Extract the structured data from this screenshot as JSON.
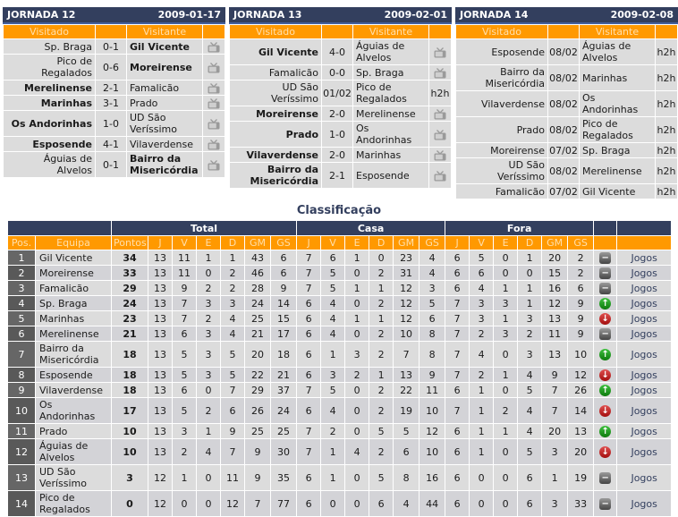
{
  "labels": {
    "h2h": "h2h",
    "jogos": "Jogos"
  },
  "colors": {
    "navy": "#333F5E",
    "orange": "#FF9900",
    "header_text": "#FFDFAC",
    "cell_grey": "#DCDCDC",
    "cell_grey_alt": "#D3D3D7",
    "pos_grey": "#666666",
    "trend_up_green": "#0d7a0d",
    "trend_down_red": "#a30e0e",
    "trend_same_grey": "#454545"
  },
  "jornadas": [
    {
      "title": "JORNADA 12",
      "date": "2009-01-17",
      "columns": {
        "visitado": "Visitado",
        "visitante": "Visitante"
      },
      "matches": [
        {
          "home": "Sp. Braga",
          "home_bold": false,
          "score": "0-1",
          "away": "Gil Vicente",
          "away_bold": true,
          "extra": "tv"
        },
        {
          "home": "Pico de Regalados",
          "home_bold": false,
          "score": "0-6",
          "away": "Moreirense",
          "away_bold": true,
          "extra": "tv"
        },
        {
          "home": "Merelinense",
          "home_bold": true,
          "score": "2-1",
          "away": "Famalicão",
          "away_bold": false,
          "extra": "tv"
        },
        {
          "home": "Marinhas",
          "home_bold": true,
          "score": "3-1",
          "away": "Prado",
          "away_bold": false,
          "extra": "tv"
        },
        {
          "home": "Os Andorinhas",
          "home_bold": true,
          "score": "1-0",
          "away": "UD São Veríssimo",
          "away_bold": false,
          "extra": "tv"
        },
        {
          "home": "Esposende",
          "home_bold": true,
          "score": "4-1",
          "away": "Vilaverdense",
          "away_bold": false,
          "extra": "tv"
        },
        {
          "home": "Águias de Alvelos",
          "home_bold": false,
          "score": "0-1",
          "away": "Bairro da Misericórdia",
          "away_bold": true,
          "extra": "tv"
        }
      ]
    },
    {
      "title": "JORNADA 13",
      "date": "2009-02-01",
      "columns": {
        "visitado": "Visitado",
        "visitante": "Visitante"
      },
      "matches": [
        {
          "home": "Gil Vicente",
          "home_bold": true,
          "score": "4-0",
          "away": "Águias de Alvelos",
          "away_bold": false,
          "extra": "tv"
        },
        {
          "home": "Famalicão",
          "home_bold": false,
          "score": "0-0",
          "away": "Sp. Braga",
          "away_bold": false,
          "extra": "tv"
        },
        {
          "home": "UD São Veríssimo",
          "home_bold": false,
          "score": "01/02",
          "away": "Pico de Regalados",
          "away_bold": false,
          "extra": "h2h"
        },
        {
          "home": "Moreirense",
          "home_bold": true,
          "score": "2-0",
          "away": "Merelinense",
          "away_bold": false,
          "extra": "tv"
        },
        {
          "home": "Prado",
          "home_bold": true,
          "score": "1-0",
          "away": "Os Andorinhas",
          "away_bold": false,
          "extra": "tv"
        },
        {
          "home": "Vilaverdense",
          "home_bold": true,
          "score": "2-0",
          "away": "Marinhas",
          "away_bold": false,
          "extra": "tv"
        },
        {
          "home": "Bairro da Misericórdia",
          "home_bold": true,
          "score": "2-1",
          "away": "Esposende",
          "away_bold": false,
          "extra": "tv"
        }
      ]
    },
    {
      "title": "JORNADA 14",
      "date": "2009-02-08",
      "columns": {
        "visitado": "Visitado",
        "visitante": "Visitante"
      },
      "matches": [
        {
          "home": "Esposende",
          "home_bold": false,
          "score": "08/02",
          "away": "Águias de Alvelos",
          "away_bold": false,
          "extra": "h2h"
        },
        {
          "home": "Bairro da Misericórdia",
          "home_bold": false,
          "score": "08/02",
          "away": "Marinhas",
          "away_bold": false,
          "extra": "h2h"
        },
        {
          "home": "Vilaverdense",
          "home_bold": false,
          "score": "08/02",
          "away": "Os Andorinhas",
          "away_bold": false,
          "extra": "h2h"
        },
        {
          "home": "Prado",
          "home_bold": false,
          "score": "08/02",
          "away": "Pico de Regalados",
          "away_bold": false,
          "extra": "h2h"
        },
        {
          "home": "Moreirense",
          "home_bold": false,
          "score": "07/02",
          "away": "Sp. Braga",
          "away_bold": false,
          "extra": "h2h"
        },
        {
          "home": "UD São Veríssimo",
          "home_bold": false,
          "score": "08/02",
          "away": "Merelinense",
          "away_bold": false,
          "extra": "h2h"
        },
        {
          "home": "Famalicão",
          "home_bold": false,
          "score": "07/02",
          "away": "Gil Vicente",
          "away_bold": false,
          "extra": "h2h"
        }
      ]
    }
  ],
  "classification": {
    "title": "Classificação",
    "groups": {
      "total": "Total",
      "casa": "Casa",
      "fora": "Fora"
    },
    "headers": {
      "pos": "Pos.",
      "team": "Equipa",
      "points": "Pontos",
      "stats": [
        "J",
        "V",
        "E",
        "D",
        "GM",
        "GS"
      ]
    },
    "rows": [
      {
        "pos": "1",
        "team": "Gil Vicente",
        "points": "34",
        "total": [
          13,
          11,
          1,
          1,
          43,
          6
        ],
        "casa": [
          7,
          6,
          1,
          0,
          23,
          4
        ],
        "fora": [
          6,
          5,
          0,
          1,
          20,
          2
        ],
        "trend": "same",
        "jogos": "Jogos"
      },
      {
        "pos": "2",
        "team": "Moreirense",
        "points": "33",
        "total": [
          13,
          11,
          0,
          2,
          46,
          6
        ],
        "casa": [
          7,
          5,
          0,
          2,
          31,
          4
        ],
        "fora": [
          6,
          6,
          0,
          0,
          15,
          2
        ],
        "trend": "same",
        "jogos": "Jogos"
      },
      {
        "pos": "3",
        "team": "Famalicão",
        "points": "29",
        "total": [
          13,
          9,
          2,
          2,
          28,
          9
        ],
        "casa": [
          7,
          5,
          1,
          1,
          12,
          3
        ],
        "fora": [
          6,
          4,
          1,
          1,
          16,
          6
        ],
        "trend": "same",
        "jogos": "Jogos"
      },
      {
        "pos": "4",
        "team": "Sp. Braga",
        "points": "24",
        "total": [
          13,
          7,
          3,
          3,
          24,
          14
        ],
        "casa": [
          6,
          4,
          0,
          2,
          12,
          5
        ],
        "fora": [
          7,
          3,
          3,
          1,
          12,
          9
        ],
        "trend": "up",
        "jogos": "Jogos"
      },
      {
        "pos": "5",
        "team": "Marinhas",
        "points": "23",
        "total": [
          13,
          7,
          2,
          4,
          25,
          15
        ],
        "casa": [
          6,
          4,
          1,
          1,
          12,
          6
        ],
        "fora": [
          7,
          3,
          1,
          3,
          13,
          9
        ],
        "trend": "down",
        "jogos": "Jogos"
      },
      {
        "pos": "6",
        "team": "Merelinense",
        "points": "21",
        "total": [
          13,
          6,
          3,
          4,
          21,
          17
        ],
        "casa": [
          6,
          4,
          0,
          2,
          10,
          8
        ],
        "fora": [
          7,
          2,
          3,
          2,
          11,
          9
        ],
        "trend": "same",
        "jogos": "Jogos"
      },
      {
        "pos": "7",
        "team": "Bairro da Misericórdia",
        "points": "18",
        "total": [
          13,
          5,
          3,
          5,
          20,
          18
        ],
        "casa": [
          6,
          1,
          3,
          2,
          7,
          8
        ],
        "fora": [
          7,
          4,
          0,
          3,
          13,
          10
        ],
        "trend": "up",
        "jogos": "Jogos"
      },
      {
        "pos": "8",
        "team": "Esposende",
        "points": "18",
        "total": [
          13,
          5,
          3,
          5,
          22,
          21
        ],
        "casa": [
          6,
          3,
          2,
          1,
          13,
          9
        ],
        "fora": [
          7,
          2,
          1,
          4,
          9,
          12
        ],
        "trend": "down",
        "jogos": "Jogos"
      },
      {
        "pos": "9",
        "team": "Vilaverdense",
        "points": "18",
        "total": [
          13,
          6,
          0,
          7,
          29,
          37
        ],
        "casa": [
          7,
          5,
          0,
          2,
          22,
          11
        ],
        "fora": [
          6,
          1,
          0,
          5,
          7,
          26
        ],
        "trend": "up",
        "jogos": "Jogos"
      },
      {
        "pos": "10",
        "team": "Os Andorinhas",
        "points": "17",
        "total": [
          13,
          5,
          2,
          6,
          26,
          24
        ],
        "casa": [
          6,
          4,
          0,
          2,
          19,
          10
        ],
        "fora": [
          7,
          1,
          2,
          4,
          7,
          14
        ],
        "trend": "down",
        "jogos": "Jogos"
      },
      {
        "pos": "11",
        "team": "Prado",
        "points": "10",
        "total": [
          13,
          3,
          1,
          9,
          25,
          25
        ],
        "casa": [
          7,
          2,
          0,
          5,
          5,
          12
        ],
        "fora": [
          6,
          1,
          1,
          4,
          20,
          13
        ],
        "trend": "up",
        "jogos": "Jogos"
      },
      {
        "pos": "12",
        "team": "Águias de Alvelos",
        "points": "10",
        "total": [
          13,
          2,
          4,
          7,
          9,
          30
        ],
        "casa": [
          7,
          1,
          4,
          2,
          6,
          10
        ],
        "fora": [
          6,
          1,
          0,
          5,
          3,
          20
        ],
        "trend": "down",
        "jogos": "Jogos"
      },
      {
        "pos": "13",
        "team": "UD São Veríssimo",
        "points": "3",
        "total": [
          12,
          1,
          0,
          11,
          9,
          35
        ],
        "casa": [
          6,
          1,
          0,
          5,
          8,
          16
        ],
        "fora": [
          6,
          0,
          0,
          6,
          1,
          19
        ],
        "trend": "same",
        "jogos": "Jogos"
      },
      {
        "pos": "14",
        "team": "Pico de Regalados",
        "points": "0",
        "total": [
          12,
          0,
          0,
          12,
          7,
          77
        ],
        "casa": [
          6,
          0,
          0,
          6,
          4,
          44
        ],
        "fora": [
          6,
          0,
          0,
          6,
          3,
          33
        ],
        "trend": "same",
        "jogos": "Jogos"
      }
    ]
  }
}
